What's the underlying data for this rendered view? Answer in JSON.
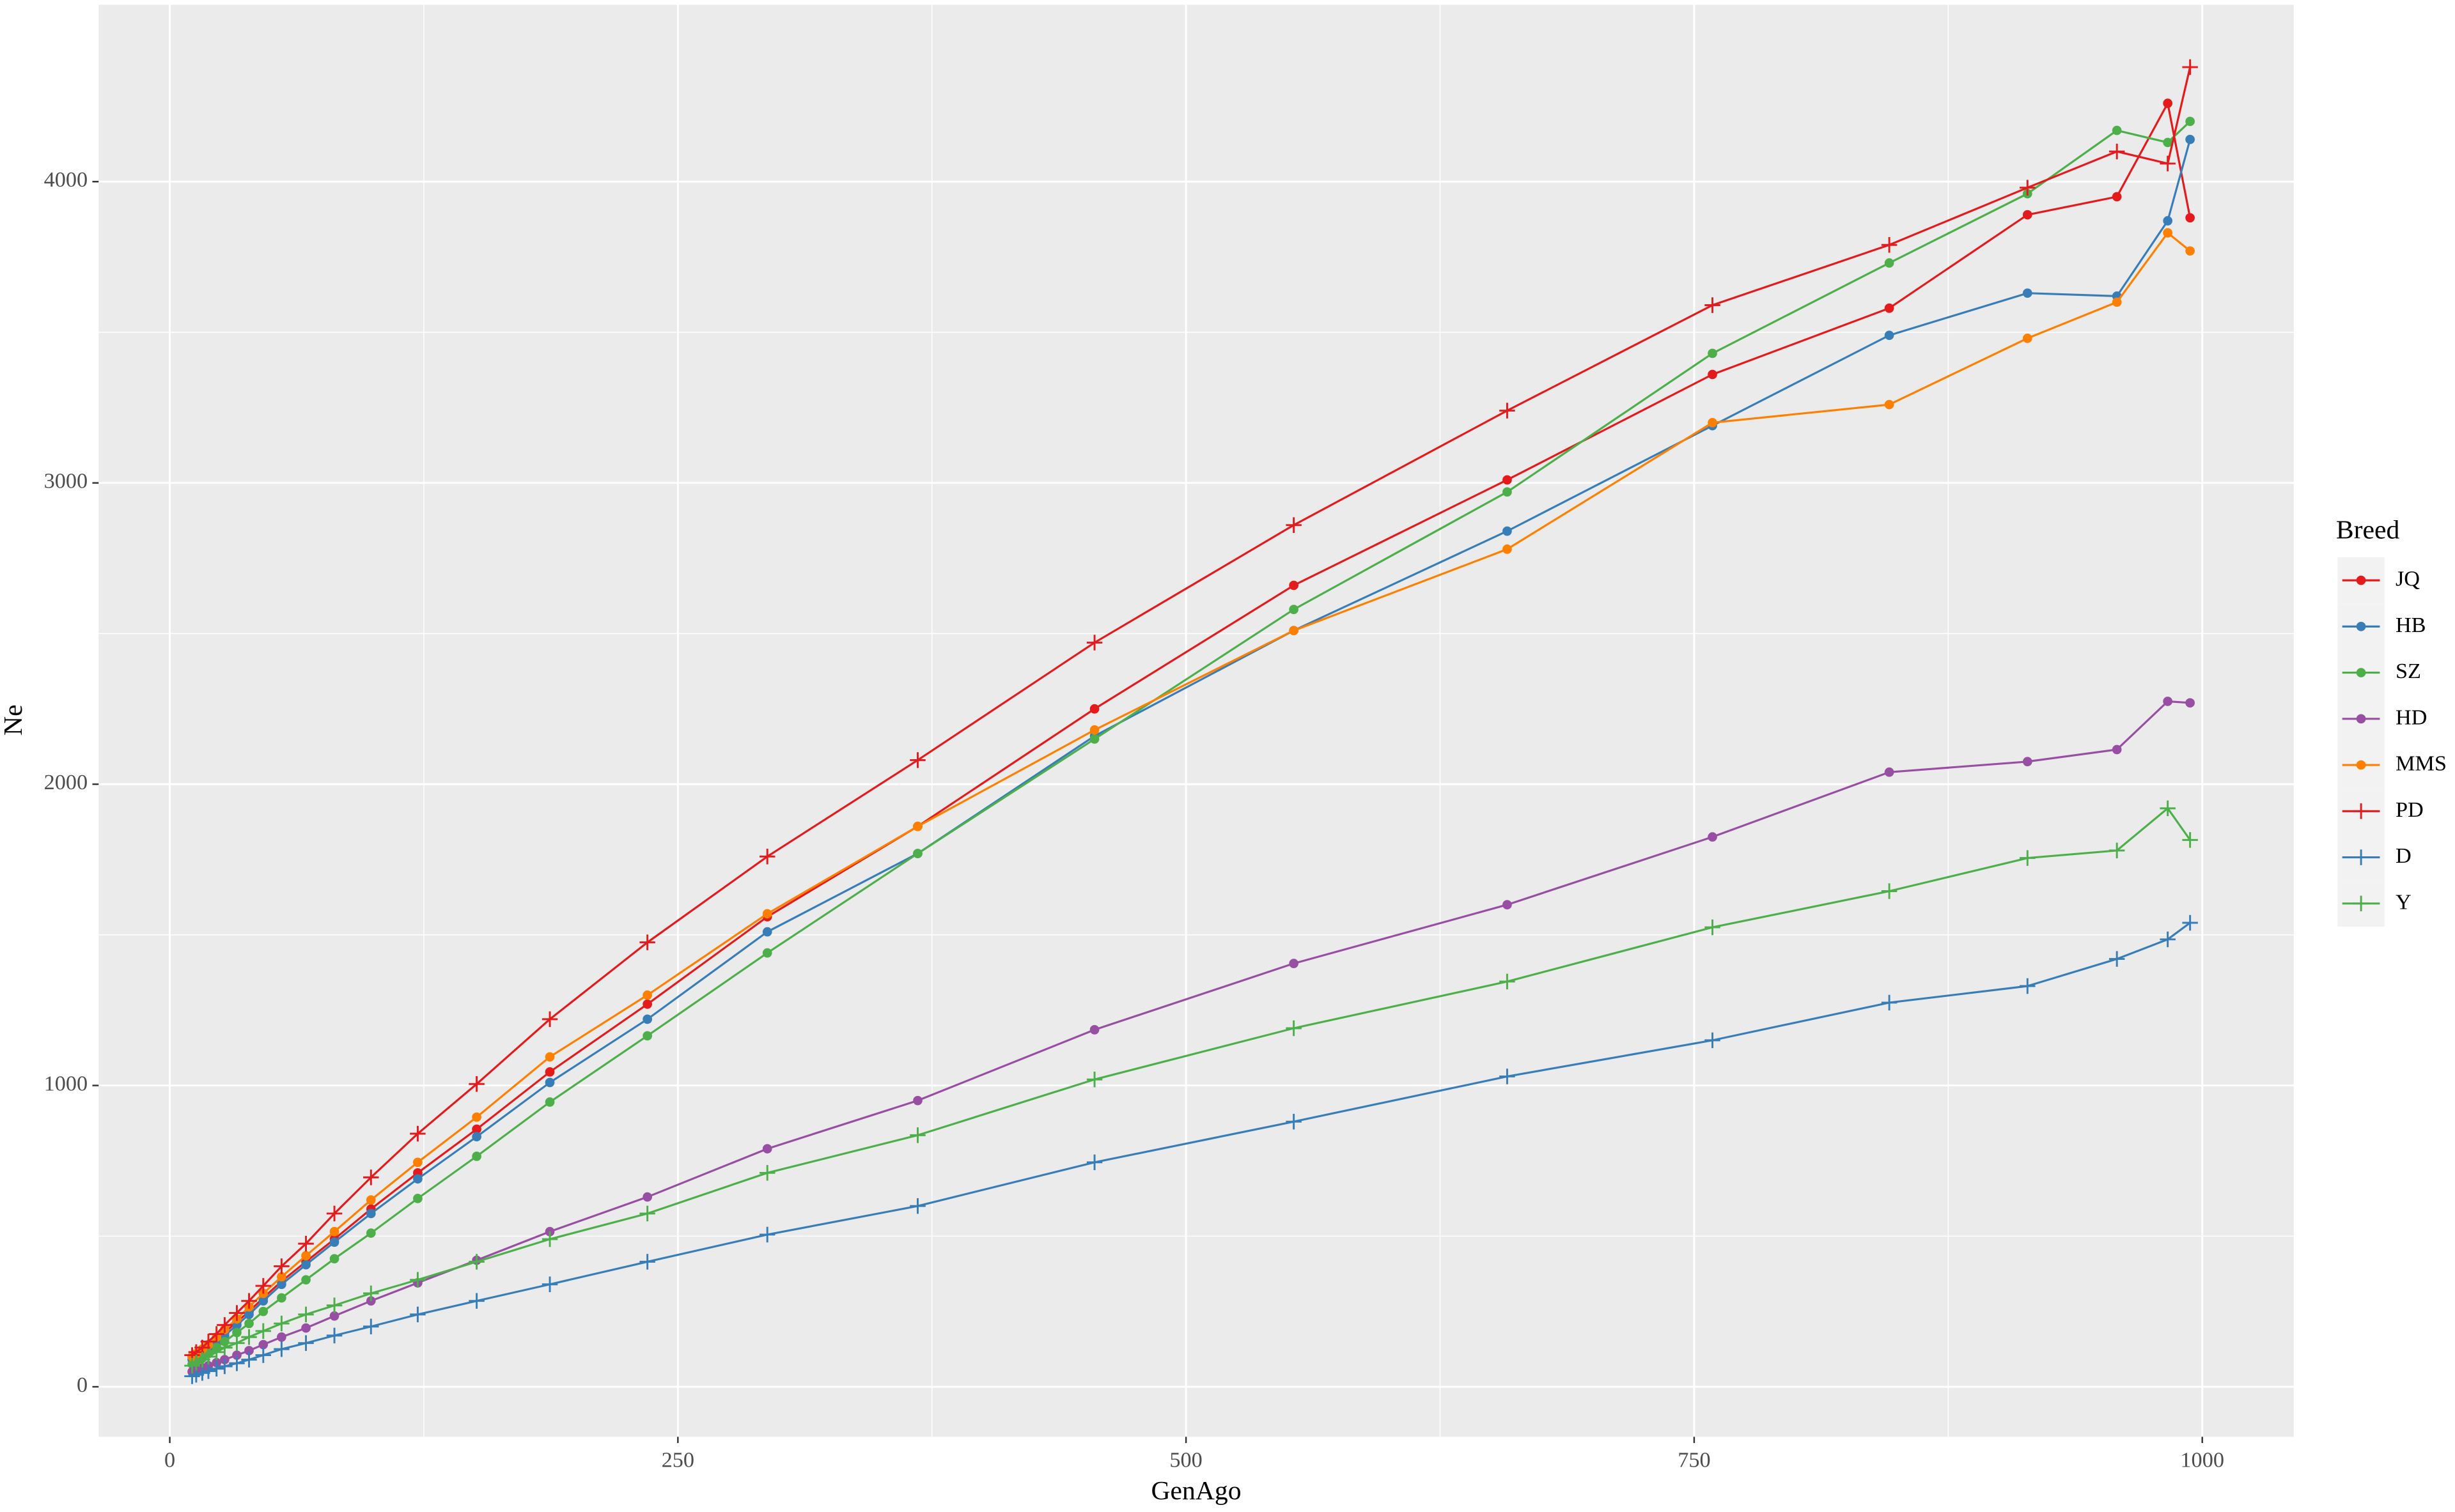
{
  "chart_data": {
    "type": "line",
    "xlabel": "GenAgo",
    "ylabel": "Ne",
    "legend_title": "Breed",
    "legend": "right",
    "grid": true,
    "x": [
      11,
      13,
      16,
      19,
      23,
      27,
      33,
      39,
      46,
      55,
      67,
      81,
      99,
      122,
      151,
      187,
      235,
      294,
      368,
      455,
      553,
      658,
      759,
      846,
      914,
      958,
      983,
      994
    ],
    "xlim": [
      -35,
      1045
    ],
    "xticks": [
      0,
      250,
      500,
      750,
      1000
    ],
    "ylim": [
      -166,
      4587
    ],
    "yticks": [
      0,
      1000,
      2000,
      3000,
      4000
    ],
    "series": [
      {
        "name": "JQ",
        "color": "#e41a1c",
        "marker": "circle",
        "values": [
          100,
          108,
          120,
          135,
          155,
          180,
          215,
          250,
          295,
          350,
          415,
          490,
          590,
          710,
          855,
          1045,
          1270,
          1560,
          1860,
          2250,
          2660,
          3010,
          3360,
          3580,
          3890,
          3950,
          4260,
          3880
        ]
      },
      {
        "name": "HB",
        "color": "#377eb8",
        "marker": "circle",
        "values": [
          90,
          98,
          110,
          125,
          145,
          170,
          205,
          240,
          285,
          340,
          405,
          480,
          575,
          690,
          830,
          1010,
          1220,
          1510,
          1770,
          2160,
          2510,
          2840,
          3190,
          3490,
          3630,
          3620,
          3870,
          4140
        ]
      },
      {
        "name": "SZ",
        "color": "#4daf4a",
        "marker": "circle",
        "values": [
          75,
          85,
          95,
          110,
          130,
          150,
          180,
          210,
          250,
          295,
          355,
          425,
          510,
          625,
          765,
          945,
          1165,
          1440,
          1770,
          2150,
          2580,
          2970,
          3430,
          3730,
          3960,
          4170,
          4130,
          4200
        ]
      },
      {
        "name": "HD",
        "color": "#984ea3",
        "marker": "circle",
        "values": [
          50,
          55,
          62,
          70,
          80,
          90,
          105,
          120,
          140,
          165,
          195,
          235,
          285,
          345,
          420,
          515,
          630,
          790,
          950,
          1185,
          1405,
          1600,
          1825,
          2040,
          2075,
          2115,
          2275,
          2270
        ]
      },
      {
        "name": "MMS",
        "color": "#ff7f00",
        "marker": "circle",
        "values": [
          100,
          110,
          125,
          140,
          165,
          190,
          225,
          265,
          310,
          365,
          435,
          515,
          620,
          745,
          895,
          1095,
          1300,
          1570,
          1860,
          2180,
          2510,
          2780,
          3200,
          3260,
          3480,
          3600,
          3830,
          3770
        ]
      },
      {
        "name": "PD",
        "color": "#e41a1c",
        "marker": "plus",
        "values": [
          105,
          115,
          130,
          150,
          175,
          205,
          245,
          285,
          335,
          400,
          475,
          575,
          695,
          840,
          1005,
          1220,
          1475,
          1760,
          2080,
          2470,
          2860,
          3240,
          3590,
          3790,
          3980,
          4100,
          4060,
          4380
        ]
      },
      {
        "name": "D",
        "color": "#377eb8",
        "marker": "plus",
        "values": [
          35,
          40,
          46,
          52,
          60,
          68,
          78,
          90,
          105,
          125,
          145,
          170,
          200,
          240,
          285,
          340,
          415,
          505,
          600,
          745,
          880,
          1030,
          1150,
          1275,
          1330,
          1420,
          1485,
          1540
        ]
      },
      {
        "name": "Y",
        "color": "#4daf4a",
        "marker": "plus",
        "values": [
          70,
          80,
          90,
          100,
          115,
          130,
          145,
          165,
          185,
          210,
          240,
          270,
          310,
          355,
          415,
          490,
          575,
          710,
          835,
          1020,
          1190,
          1345,
          1525,
          1645,
          1755,
          1780,
          1920,
          1815
        ]
      }
    ]
  }
}
